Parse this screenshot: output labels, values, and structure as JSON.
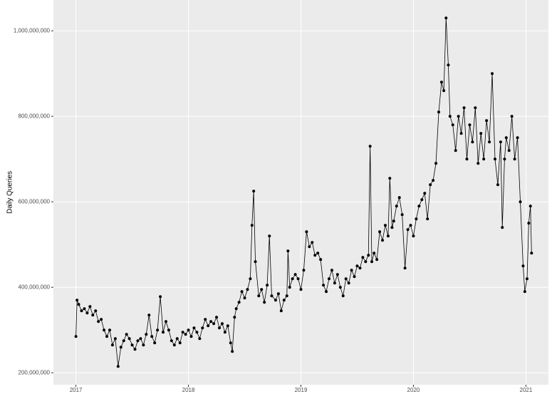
{
  "chart_data": {
    "type": "line",
    "y_label": "Daily Queries",
    "color": "#000000",
    "markers": true,
    "grid": true,
    "xlim": [
      2016.8,
      2021.2
    ],
    "xticks": [
      2017,
      2018,
      2019,
      2020,
      2021
    ],
    "ylim": [
      172000000,
      1072000000
    ],
    "yticks": [
      {
        "value": 200000000,
        "label": "200,000,000"
      },
      {
        "value": 400000000,
        "label": "400,000,000"
      },
      {
        "value": 600000000,
        "label": "600,000,000"
      },
      {
        "value": 800000000,
        "label": "800,000,000"
      },
      {
        "value": 1000000000,
        "label": "1,000,000,000"
      }
    ],
    "x": [
      2017,
      2017.01,
      2017.025,
      2017.05,
      2017.075,
      2017.1,
      2017.125,
      2017.15,
      2017.175,
      2017.2,
      2017.225,
      2017.25,
      2017.275,
      2017.3,
      2017.325,
      2017.35,
      2017.375,
      2017.4,
      2017.425,
      2017.45,
      2017.475,
      2017.5,
      2017.525,
      2017.55,
      2017.575,
      2017.6,
      2017.625,
      2017.65,
      2017.675,
      2017.7,
      2017.725,
      2017.75,
      2017.775,
      2017.8,
      2017.825,
      2017.85,
      2017.875,
      2017.9,
      2017.925,
      2017.95,
      2017.975,
      2018,
      2018.025,
      2018.05,
      2018.075,
      2018.1,
      2018.125,
      2018.15,
      2018.175,
      2018.2,
      2018.225,
      2018.25,
      2018.275,
      2018.3,
      2018.325,
      2018.35,
      2018.375,
      2018.39,
      2018.41,
      2018.425,
      2018.45,
      2018.475,
      2018.5,
      2018.525,
      2018.55,
      2018.565,
      2018.58,
      2018.595,
      2018.625,
      2018.65,
      2018.675,
      2018.7,
      2018.72,
      2018.74,
      2018.775,
      2018.8,
      2018.825,
      2018.85,
      2018.875,
      2018.885,
      2018.9,
      2018.925,
      2018.95,
      2018.975,
      2019,
      2019.025,
      2019.05,
      2019.075,
      2019.1,
      2019.125,
      2019.15,
      2019.175,
      2019.2,
      2019.225,
      2019.25,
      2019.275,
      2019.3,
      2019.325,
      2019.35,
      2019.375,
      2019.4,
      2019.425,
      2019.45,
      2019.475,
      2019.5,
      2019.525,
      2019.55,
      2019.575,
      2019.6,
      2019.615,
      2019.63,
      2019.65,
      2019.675,
      2019.7,
      2019.725,
      2019.75,
      2019.775,
      2019.79,
      2019.81,
      2019.825,
      2019.85,
      2019.875,
      2019.9,
      2019.925,
      2019.95,
      2019.975,
      2020,
      2020.025,
      2020.05,
      2020.075,
      2020.1,
      2020.125,
      2020.15,
      2020.175,
      2020.2,
      2020.225,
      2020.25,
      2020.27,
      2020.29,
      2020.31,
      2020.325,
      2020.35,
      2020.375,
      2020.4,
      2020.425,
      2020.45,
      2020.475,
      2020.5,
      2020.525,
      2020.55,
      2020.575,
      2020.6,
      2020.625,
      2020.65,
      2020.675,
      2020.7,
      2020.725,
      2020.75,
      2020.775,
      2020.79,
      2020.81,
      2020.825,
      2020.85,
      2020.875,
      2020.9,
      2020.925,
      2020.95,
      2020.975,
      2020.99,
      2021.01,
      2021.025,
      2021.04,
      2021.05
    ],
    "values": [
      285000000,
      370000000,
      360000000,
      345000000,
      350000000,
      340000000,
      355000000,
      335000000,
      345000000,
      320000000,
      325000000,
      300000000,
      285000000,
      300000000,
      265000000,
      280000000,
      215000000,
      260000000,
      275000000,
      290000000,
      280000000,
      265000000,
      255000000,
      275000000,
      280000000,
      265000000,
      290000000,
      335000000,
      285000000,
      270000000,
      300000000,
      378000000,
      295000000,
      320000000,
      300000000,
      275000000,
      265000000,
      280000000,
      270000000,
      295000000,
      290000000,
      300000000,
      285000000,
      305000000,
      295000000,
      280000000,
      305000000,
      325000000,
      310000000,
      320000000,
      315000000,
      330000000,
      305000000,
      315000000,
      295000000,
      310000000,
      270000000,
      250000000,
      330000000,
      350000000,
      365000000,
      390000000,
      375000000,
      395000000,
      420000000,
      545000000,
      625000000,
      460000000,
      380000000,
      395000000,
      365000000,
      405000000,
      520000000,
      380000000,
      370000000,
      385000000,
      345000000,
      370000000,
      380000000,
      485000000,
      400000000,
      420000000,
      430000000,
      420000000,
      395000000,
      440000000,
      530000000,
      495000000,
      505000000,
      475000000,
      480000000,
      465000000,
      405000000,
      390000000,
      420000000,
      440000000,
      410000000,
      430000000,
      400000000,
      380000000,
      420000000,
      410000000,
      440000000,
      425000000,
      450000000,
      445000000,
      470000000,
      460000000,
      475000000,
      730000000,
      460000000,
      480000000,
      465000000,
      530000000,
      510000000,
      545000000,
      520000000,
      655000000,
      540000000,
      555000000,
      590000000,
      610000000,
      570000000,
      445000000,
      535000000,
      545000000,
      520000000,
      560000000,
      590000000,
      605000000,
      620000000,
      560000000,
      640000000,
      650000000,
      690000000,
      810000000,
      880000000,
      860000000,
      1030000000,
      920000000,
      800000000,
      780000000,
      720000000,
      800000000,
      760000000,
      820000000,
      700000000,
      780000000,
      740000000,
      820000000,
      690000000,
      760000000,
      700000000,
      790000000,
      740000000,
      900000000,
      700000000,
      640000000,
      740000000,
      540000000,
      700000000,
      750000000,
      720000000,
      800000000,
      700000000,
      750000000,
      600000000,
      450000000,
      390000000,
      420000000,
      550000000,
      590000000,
      480000000
    ]
  }
}
